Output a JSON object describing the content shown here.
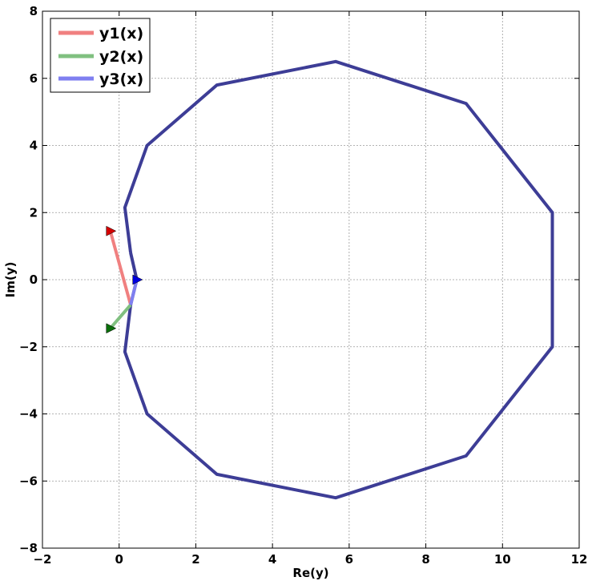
{
  "chart_data": {
    "type": "line",
    "title": "",
    "xlabel": "Re(y)",
    "ylabel": "Im(y)",
    "xlim": [
      -2,
      12
    ],
    "ylim": [
      -8,
      8
    ],
    "xticks": [
      -2,
      0,
      2,
      4,
      6,
      8,
      10,
      12
    ],
    "yticks": [
      -8,
      -6,
      -4,
      -2,
      0,
      2,
      4,
      6,
      8
    ],
    "grid": true,
    "legend_position": "top-left",
    "series": [
      {
        "name": "y1(x)",
        "color": "#f08080",
        "x": [
          0.3,
          -0.23
        ],
        "y": [
          -0.75,
          1.45
        ],
        "marker": "triangle-right",
        "marker_at": "end",
        "marker_color": "#d40000"
      },
      {
        "name": "y2(x)",
        "color": "#80c080",
        "x": [
          0.3,
          -0.23
        ],
        "y": [
          -0.75,
          -1.45
        ],
        "marker": "triangle-right",
        "marker_at": "end",
        "marker_color": "#0a6e0a"
      },
      {
        "name": "y3(x)",
        "color": "#7f7ff0",
        "x": [
          0.3,
          0.46
        ],
        "y": [
          -0.75,
          0.0
        ],
        "marker": "triangle-right",
        "marker_at": "end",
        "marker_color": "#0000e0"
      }
    ],
    "polygon": {
      "color": "#3d3d96",
      "points": [
        [
          0.3,
          0.8
        ],
        [
          0.15,
          2.15
        ],
        [
          0.73,
          4.0
        ],
        [
          2.55,
          5.8
        ],
        [
          5.65,
          6.5
        ],
        [
          9.05,
          5.25
        ],
        [
          11.3,
          2.0
        ],
        [
          11.3,
          -2.0
        ],
        [
          9.05,
          -5.25
        ],
        [
          5.65,
          -6.5
        ],
        [
          2.55,
          -5.8
        ],
        [
          0.73,
          -4.0
        ],
        [
          0.15,
          -2.15
        ],
        [
          0.3,
          -0.75
        ],
        [
          0.46,
          0.0
        ],
        [
          0.3,
          0.8
        ]
      ]
    }
  }
}
